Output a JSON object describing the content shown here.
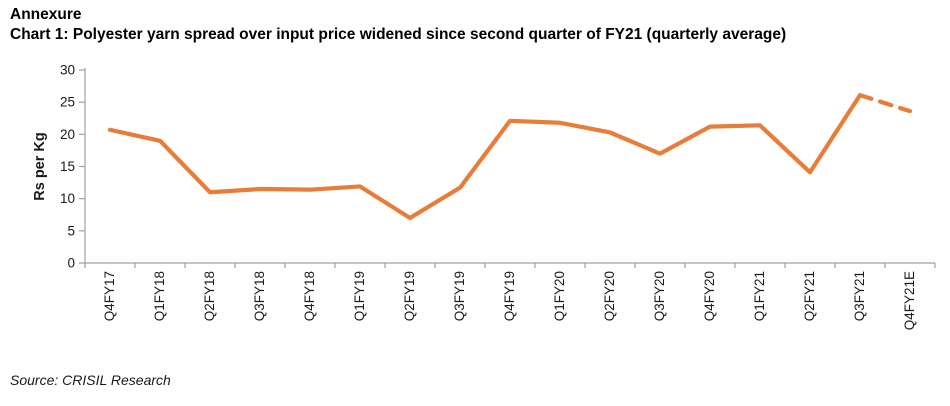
{
  "header": {
    "annexure": "Annexure",
    "title": "Chart 1: Polyester yarn spread over input price widened since second quarter of FY21 (quarterly average)"
  },
  "chart_data": {
    "type": "line",
    "title": "Chart 1: Polyester yarn spread over input price widened since second quarter of FY21 (quarterly average)",
    "categories": [
      "Q4FY17",
      "Q1FY18",
      "Q2FY18",
      "Q3FY18",
      "Q4FY18",
      "Q1FY19",
      "Q2FY19",
      "Q3FY19",
      "Q4FY19",
      "Q1FY20",
      "Q2FY20",
      "Q3FY20",
      "Q4FY20",
      "Q1FY21",
      "Q2FY21",
      "Q3FY21",
      "Q4FY21E"
    ],
    "values": [
      20.7,
      19.0,
      11.0,
      11.5,
      11.4,
      11.9,
      7.0,
      11.7,
      22.1,
      21.8,
      20.3,
      17.0,
      21.2,
      21.4,
      14.1,
      26.1,
      23.6
    ],
    "series_name": "Polyester yarn spread over input price",
    "xlabel": "",
    "ylabel": "Rs per Kg",
    "ylim": [
      0,
      30
    ],
    "ytick_step": 5,
    "grid": false,
    "legend_position": "none",
    "dashed_last_segment": true,
    "estimated_point": "Q4FY21E",
    "line_color": "#E87D3A",
    "axis_color": "#a0a0a0",
    "tick_label_color": "#1a1a1a"
  },
  "source": "Source: CRISIL Research"
}
